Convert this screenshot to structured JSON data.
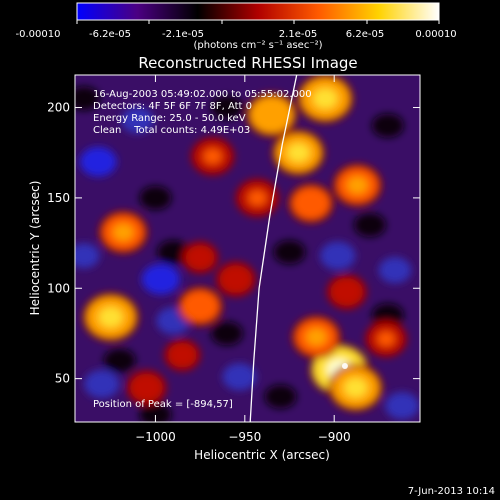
{
  "colorbar": {
    "tick_labels": [
      "-0.00010",
      "-6.2e-05",
      "-2.1e-05",
      "2.1e-05",
      "6.2e-05",
      "0.00010"
    ],
    "unit_label": "(photons cm⁻² s⁻¹ asec⁻²)",
    "range": [
      -0.0001,
      0.0001
    ],
    "colors": [
      "#0000ff",
      "#4b0082",
      "#000000",
      "#b00000",
      "#ff5a00",
      "#ffd200",
      "#ffffff"
    ]
  },
  "chart_data": {
    "type": "heatmap",
    "title": "Reconstructed RHESSI Image",
    "xlabel": "Heliocentric X (arcsec)",
    "ylabel": "Heliocentric Y (arcsec)",
    "xlim": [
      -1045,
      -852
    ],
    "ylim": [
      26,
      218
    ],
    "x_ticks": [
      -1000,
      -950,
      -900
    ],
    "y_ticks": [
      50,
      100,
      150,
      200
    ],
    "annotations": [
      "16-Aug-2003 05:49:02.000 to 05:55:02.000",
      "Detectors: 4F 5F 6F 7F 8F, Att 0",
      "Energy Range: 25.0 - 50.0 keV",
      "Clean    Total counts: 4.49E+03"
    ],
    "peak_label": "Position of Peak = [-894,57]",
    "peak": [
      -894,
      57
    ],
    "limb_curve": [
      [
        -947,
        26
      ],
      [
        -945,
        60
      ],
      [
        -942,
        100
      ],
      [
        -936,
        140
      ],
      [
        -929,
        180
      ],
      [
        -921,
        218
      ]
    ],
    "sources": [
      {
        "x": -897,
        "y": 55,
        "level": 1.0
      },
      {
        "x": -888,
        "y": 45,
        "level": 0.85
      },
      {
        "x": -910,
        "y": 73,
        "level": 0.7
      },
      {
        "x": -920,
        "y": 175,
        "level": 0.8
      },
      {
        "x": -935,
        "y": 196,
        "level": 0.75
      },
      {
        "x": -905,
        "y": 205,
        "level": 0.9
      },
      {
        "x": -913,
        "y": 147,
        "level": 0.6
      },
      {
        "x": -943,
        "y": 150,
        "level": 0.55
      },
      {
        "x": -968,
        "y": 173,
        "level": 0.55
      },
      {
        "x": -887,
        "y": 157,
        "level": 0.7
      },
      {
        "x": -1025,
        "y": 84,
        "level": 0.9
      },
      {
        "x": -1018,
        "y": 131,
        "level": 0.7
      },
      {
        "x": -975,
        "y": 90,
        "level": 0.6
      },
      {
        "x": -955,
        "y": 105,
        "level": 0.45
      },
      {
        "x": -893,
        "y": 98,
        "level": 0.45
      },
      {
        "x": -1005,
        "y": 45,
        "level": 0.45
      },
      {
        "x": -985,
        "y": 63,
        "level": 0.35
      },
      {
        "x": -975,
        "y": 117,
        "level": 0.35
      },
      {
        "x": -871,
        "y": 72,
        "level": 0.5
      }
    ],
    "dips": [
      {
        "x": -1032,
        "y": 170,
        "level": -0.6
      },
      {
        "x": -1030,
        "y": 47,
        "level": -0.55
      },
      {
        "x": -1010,
        "y": 193,
        "level": -0.45
      },
      {
        "x": -997,
        "y": 105,
        "level": -0.65
      },
      {
        "x": -990,
        "y": 82,
        "level": -0.5
      },
      {
        "x": -953,
        "y": 51,
        "level": -0.5
      },
      {
        "x": -898,
        "y": 118,
        "level": -0.55
      },
      {
        "x": -866,
        "y": 110,
        "level": -0.45
      },
      {
        "x": -862,
        "y": 35,
        "level": -0.5
      },
      {
        "x": -1040,
        "y": 118,
        "level": -0.4
      }
    ]
  },
  "footer": {
    "date": "7-Jun-2013 10:14"
  }
}
